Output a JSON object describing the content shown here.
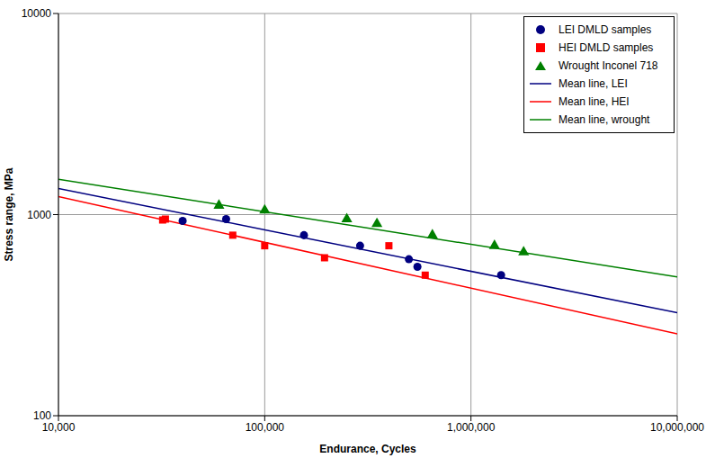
{
  "chart_data": {
    "type": "scatter",
    "x_label": "Endurance, Cycles",
    "y_label": "Stress range, MPa",
    "log": true,
    "grid": true,
    "legend": "upper right",
    "xlim": [
      10000,
      10000000
    ],
    "ylim": [
      100,
      10000
    ],
    "xticks": [
      {
        "value": 10000,
        "label": "10,000"
      },
      {
        "value": 100000,
        "label": "100,000"
      },
      {
        "value": 1000000,
        "label": "1,000,000"
      },
      {
        "value": 10000000,
        "label": "10,000,000"
      }
    ],
    "yticks": [
      100,
      1000,
      10000
    ],
    "series": [
      {
        "name": "LEI DMLD samples",
        "type": "scatter",
        "color": "#000080",
        "marker": "circle",
        "x": [
          40000,
          65000,
          155000,
          290000,
          500000,
          550000,
          1400000
        ],
        "values": [
          930,
          950,
          790,
          700,
          600,
          550,
          500
        ]
      },
      {
        "name": "HEI DMLD samples",
        "type": "scatter",
        "color": "#ff0000",
        "marker": "square",
        "x": [
          32000,
          33000,
          70000,
          100000,
          195000,
          400000,
          600000
        ],
        "values": [
          940,
          950,
          790,
          700,
          610,
          700,
          500
        ]
      },
      {
        "name": "Wrought Inconel 718",
        "type": "scatter",
        "color": "#008000",
        "marker": "triangle",
        "x": [
          60000,
          100000,
          250000,
          350000,
          650000,
          1300000,
          1800000
        ],
        "values": [
          1110,
          1050,
          950,
          900,
          790,
          700,
          650
        ]
      },
      {
        "name": "Mean line, LEI",
        "type": "line",
        "color": "#000080",
        "line_style": "solid",
        "x": [
          10000,
          10000000
        ],
        "values": [
          1350,
          325
        ]
      },
      {
        "name": "Mean line, HEI",
        "type": "line",
        "color": "#ff0000",
        "line_style": "solid",
        "x": [
          10000,
          10000000
        ],
        "values": [
          1230,
          255
        ]
      },
      {
        "name": "Mean line, wrought",
        "type": "line",
        "color": "#008000",
        "line_style": "solid",
        "x": [
          10000,
          10000000
        ],
        "values": [
          1500,
          490
        ]
      }
    ]
  }
}
